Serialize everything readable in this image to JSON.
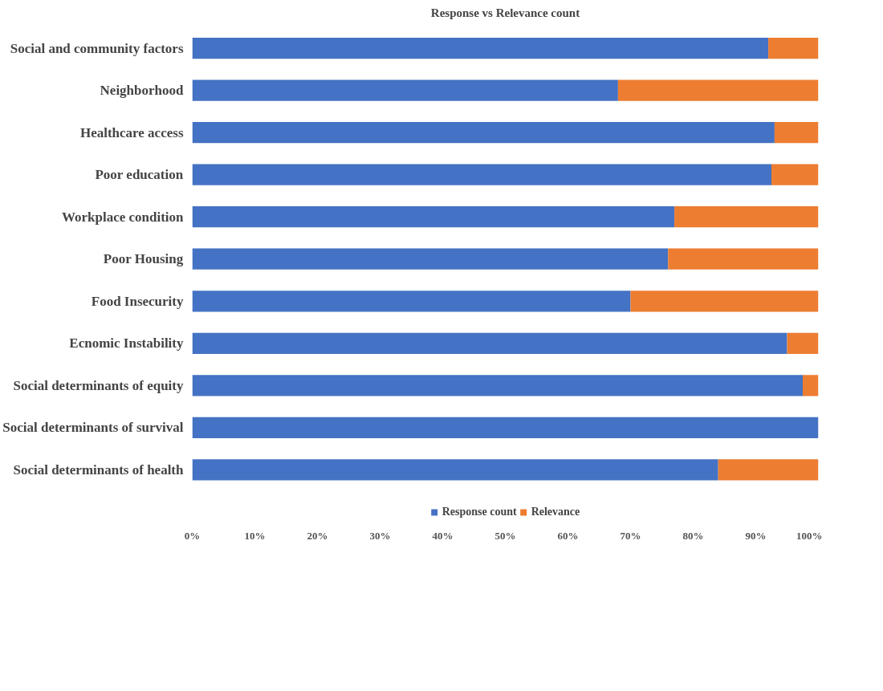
{
  "chart_data": {
    "type": "bar",
    "orientation": "horizontal",
    "stacked": true,
    "title": "Response vs Relevance count",
    "categories": [
      "Social and community factors",
      "Neighborhood",
      "Healthcare access",
      "Poor education",
      "Workplace condition",
      "Poor Housing",
      "Food Insecurity",
      "Ecnomic Instability",
      "Social determinants of equity",
      "Social determinants of survival",
      "Social determinants of health"
    ],
    "series": [
      {
        "name": "Response count",
        "color": "#4472c4",
        "values": [
          92,
          68,
          93,
          92.5,
          77,
          76,
          70,
          95,
          97.5,
          100,
          84
        ]
      },
      {
        "name": "Relevance",
        "color": "#ed7d31",
        "values": [
          8,
          32,
          7,
          7.5,
          23,
          24,
          30,
          5,
          2.5,
          0,
          16
        ]
      }
    ],
    "xlim": [
      0,
      100
    ],
    "xticks": [
      {
        "value": 0,
        "label": "0%"
      },
      {
        "value": 10,
        "label": "10%"
      },
      {
        "value": 20,
        "label": "20%"
      },
      {
        "value": 30,
        "label": "30%"
      },
      {
        "value": 40,
        "label": "40%"
      },
      {
        "value": 50,
        "label": "50%"
      },
      {
        "value": 60,
        "label": "60%"
      },
      {
        "value": 70,
        "label": "70%"
      },
      {
        "value": 80,
        "label": "80%"
      },
      {
        "value": 90,
        "label": "90%"
      },
      {
        "value": 100,
        "label": "100%"
      }
    ],
    "legend": "bottom",
    "grid": false
  }
}
